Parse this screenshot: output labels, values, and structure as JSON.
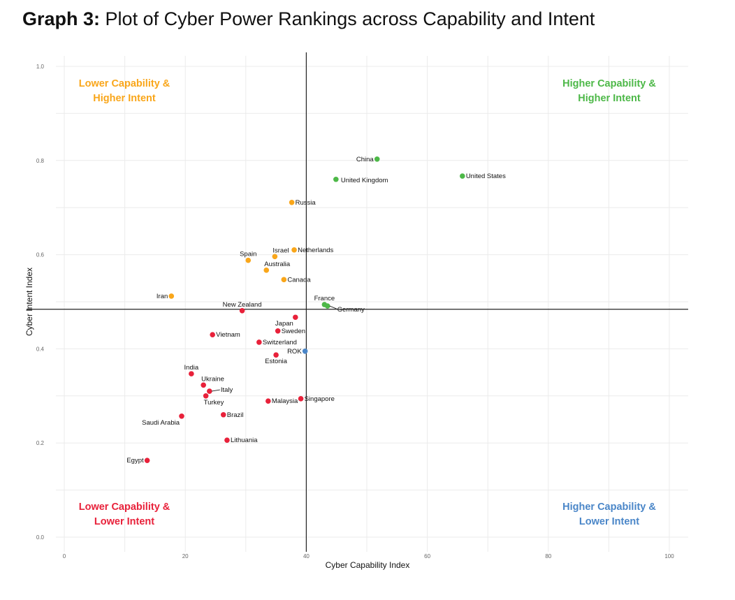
{
  "chart_data": {
    "type": "scatter",
    "title_bold": "Graph 3:",
    "title": "Plot of Cyber Power Rankings across Capability and Intent",
    "xlabel": "Cyber Capability Index",
    "ylabel": "Cyber Intent Index",
    "xlim": [
      0,
      100
    ],
    "ylim": [
      0,
      1.0
    ],
    "xticks": [
      "0",
      "20",
      "40",
      "60",
      "80",
      "100"
    ],
    "yticks": [
      "0.0",
      "0.2",
      "0.4",
      "0.6",
      "0.8",
      "1.0"
    ],
    "grid": true,
    "reference_lines": {
      "x": 40,
      "y": 0.484
    },
    "colors": {
      "red": "#e8213a",
      "orange": "#f9a61a",
      "green": "#4db848",
      "blue": "#4a86c8"
    },
    "quadrants": [
      {
        "line1": "Lower Capability &",
        "line2": "Higher Intent",
        "color": "#f9a61a",
        "position": "top-left"
      },
      {
        "line1": "Higher Capability &",
        "line2": "Higher Intent",
        "color": "#4db848",
        "position": "top-right"
      },
      {
        "line1": "Lower Capability &",
        "line2": "Lower Intent",
        "color": "#e8213a",
        "position": "bottom-left"
      },
      {
        "line1": "Higher Capability &",
        "line2": "Lower Intent",
        "color": "#4a86c8",
        "position": "bottom-right"
      }
    ],
    "points": [
      {
        "name": "China",
        "x": 51.7,
        "y": 0.803,
        "color": "green",
        "label": "left"
      },
      {
        "name": "United Kingdom",
        "x": 44.9,
        "y": 0.76,
        "color": "green",
        "label": "right-below"
      },
      {
        "name": "United States",
        "x": 65.8,
        "y": 0.767,
        "color": "green",
        "label": "right"
      },
      {
        "name": "Russia",
        "x": 37.6,
        "y": 0.711,
        "color": "orange",
        "label": "right"
      },
      {
        "name": "Netherlands",
        "x": 38.0,
        "y": 0.61,
        "color": "orange",
        "label": "right"
      },
      {
        "name": "Israel",
        "x": 34.8,
        "y": 0.596,
        "color": "orange",
        "label": "above-right"
      },
      {
        "name": "Spain",
        "x": 30.4,
        "y": 0.588,
        "color": "orange",
        "label": "above"
      },
      {
        "name": "Australia",
        "x": 33.4,
        "y": 0.567,
        "color": "orange",
        "label": "above-right"
      },
      {
        "name": "Canada",
        "x": 36.3,
        "y": 0.547,
        "color": "orange",
        "label": "right"
      },
      {
        "name": "Iran",
        "x": 17.7,
        "y": 0.512,
        "color": "orange",
        "label": "left"
      },
      {
        "name": "France",
        "x": 43.0,
        "y": 0.494,
        "color": "green",
        "label": "above"
      },
      {
        "name": "Germany",
        "x": 43.5,
        "y": 0.491,
        "color": "green",
        "label": "leader"
      },
      {
        "name": "New Zealand",
        "x": 29.4,
        "y": 0.481,
        "color": "red",
        "label": "above"
      },
      {
        "name": "Japan",
        "x": 38.2,
        "y": 0.467,
        "color": "red",
        "label": "below-left"
      },
      {
        "name": "Sweden",
        "x": 35.3,
        "y": 0.438,
        "color": "red",
        "label": "right"
      },
      {
        "name": "Vietnam",
        "x": 24.5,
        "y": 0.43,
        "color": "red",
        "label": "right"
      },
      {
        "name": "Switzerland",
        "x": 32.2,
        "y": 0.414,
        "color": "red",
        "label": "right"
      },
      {
        "name": "ROK",
        "x": 39.8,
        "y": 0.395,
        "color": "blue",
        "label": "left"
      },
      {
        "name": "Estonia",
        "x": 35.0,
        "y": 0.387,
        "color": "red",
        "label": "below"
      },
      {
        "name": "India",
        "x": 21.0,
        "y": 0.347,
        "color": "red",
        "label": "above"
      },
      {
        "name": "Ukraine",
        "x": 23.0,
        "y": 0.323,
        "color": "red",
        "label": "above-right"
      },
      {
        "name": "Italy",
        "x": 24.0,
        "y": 0.31,
        "color": "red",
        "label": "leader"
      },
      {
        "name": "Turkey",
        "x": 23.4,
        "y": 0.3,
        "color": "red",
        "label": "below-right"
      },
      {
        "name": "Malaysia",
        "x": 33.7,
        "y": 0.289,
        "color": "red",
        "label": "right"
      },
      {
        "name": "Singapore",
        "x": 39.1,
        "y": 0.294,
        "color": "red",
        "label": "right"
      },
      {
        "name": "Brazil",
        "x": 26.3,
        "y": 0.26,
        "color": "red",
        "label": "right"
      },
      {
        "name": "Saudi Arabia",
        "x": 19.4,
        "y": 0.257,
        "color": "red",
        "label": "below-left"
      },
      {
        "name": "Lithuania",
        "x": 26.9,
        "y": 0.206,
        "color": "red",
        "label": "right"
      },
      {
        "name": "Egypt",
        "x": 13.7,
        "y": 0.163,
        "color": "red",
        "label": "left"
      }
    ]
  }
}
